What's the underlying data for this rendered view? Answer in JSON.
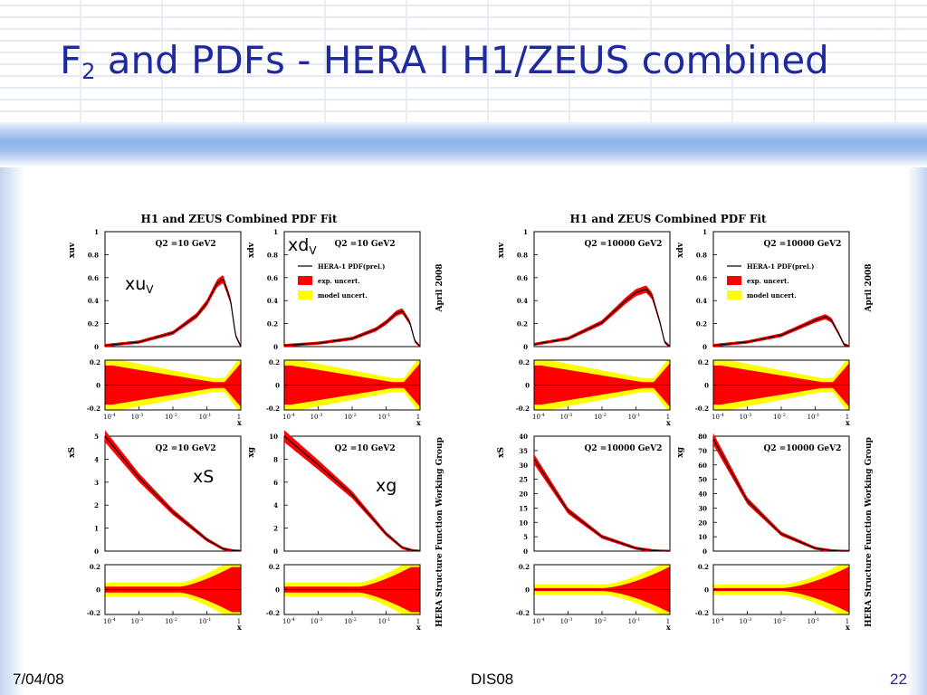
{
  "slide": {
    "title_main": "F",
    "title_sub": "2",
    "title_rest": " and PDFs - HERA I H1/ZEUS combined",
    "footer_date": "7/04/08",
    "footer_conference": "DIS08",
    "footer_page": "22"
  },
  "annotations": {
    "xdv_main": "xd",
    "xdv_sub": "V",
    "xuv_main": "xu",
    "xuv_sub": "V",
    "xS": "xS",
    "xg": "xg"
  },
  "colors": {
    "title": "#1f2a9e",
    "exp_uncert": "#ff0000",
    "model_uncert": "#ffff00",
    "central": "#000000"
  },
  "chart_data": [
    {
      "type": "line",
      "title": "H1 and ZEUS Combined PDF Fit",
      "side_text_top": "April 2008",
      "side_text_bottom": "HERA Structure Function Working Group",
      "legend": [
        "HERA-1 PDF(prel.)",
        "exp. uncert.",
        "model uncert."
      ],
      "legend_placement": "top-right",
      "x_scale": "log",
      "xlim": [
        0.0001,
        1
      ],
      "x_ticks": [
        "10-4",
        "10-3",
        "10-2",
        "10-1",
        "1"
      ],
      "panels": [
        {
          "id": "xuv",
          "ylabel": "xuv",
          "label": "Q2 =10 GeV2",
          "ylim": [
            0,
            1
          ],
          "y_ticks": [
            "0",
            "0.2",
            "0.4",
            "0.6",
            "0.8",
            "1"
          ],
          "x": [
            0.0001,
            0.001,
            0.01,
            0.05,
            0.1,
            0.2,
            0.3,
            0.5,
            0.7
          ],
          "y": [
            0.01,
            0.04,
            0.12,
            0.27,
            0.38,
            0.55,
            0.59,
            0.4,
            0.1
          ]
        },
        {
          "id": "xdv",
          "ylabel": "xdv",
          "label": "Q2 =10 GeV2",
          "ylim": [
            0,
            1
          ],
          "y_ticks": [
            "0",
            "0.2",
            "0.4",
            "0.6",
            "0.8",
            "1"
          ],
          "x": [
            0.0001,
            0.001,
            0.01,
            0.05,
            0.1,
            0.2,
            0.3,
            0.5,
            0.7
          ],
          "y": [
            0.01,
            0.03,
            0.07,
            0.15,
            0.21,
            0.29,
            0.31,
            0.21,
            0.05
          ]
        },
        {
          "id": "xS",
          "ylabel": "xS",
          "label": "Q2 =10 GeV2",
          "ylim": [
            0,
            5
          ],
          "y_ticks": [
            "0",
            "1",
            "2",
            "3",
            "4",
            "5"
          ],
          "x": [
            0.0001,
            0.001,
            0.01,
            0.1,
            0.3,
            0.6
          ],
          "y": [
            5.0,
            3.2,
            1.7,
            0.5,
            0.1,
            0.02
          ]
        },
        {
          "id": "xg",
          "ylabel": "xg",
          "label": "Q2 =10 GeV2",
          "ylim": [
            0,
            10
          ],
          "y_ticks": [
            "0",
            "2",
            "4",
            "6",
            "8",
            "10"
          ],
          "x": [
            0.0001,
            0.001,
            0.01,
            0.1,
            0.3,
            0.6
          ],
          "y": [
            10.0,
            7.5,
            4.9,
            1.5,
            0.3,
            0.05
          ]
        },
        {
          "id": "xuv",
          "ylabel": "xuv",
          "label": "Q2 =10000 GeV2",
          "ylim": [
            0,
            1
          ],
          "y_ticks": [
            "0",
            "0.2",
            "0.4",
            "0.6",
            "0.8",
            "1"
          ],
          "x": [
            0.0001,
            0.001,
            0.01,
            0.05,
            0.1,
            0.2,
            0.3,
            0.5,
            0.7
          ],
          "y": [
            0.02,
            0.07,
            0.21,
            0.4,
            0.47,
            0.5,
            0.44,
            0.22,
            0.04
          ]
        },
        {
          "id": "xdv",
          "ylabel": "xdv",
          "label": "Q2 =10000 GeV2",
          "ylim": [
            0,
            1
          ],
          "y_ticks": [
            "0",
            "0.2",
            "0.4",
            "0.6",
            "0.8",
            "1"
          ],
          "x": [
            0.0001,
            0.001,
            0.01,
            0.05,
            0.1,
            0.2,
            0.3,
            0.5,
            0.7
          ],
          "y": [
            0.01,
            0.04,
            0.1,
            0.19,
            0.23,
            0.26,
            0.23,
            0.11,
            0.02
          ]
        },
        {
          "id": "xS",
          "ylabel": "xS",
          "label": "Q2 =10000 GeV2",
          "ylim": [
            0,
            40
          ],
          "y_ticks": [
            "0",
            "5",
            "10",
            "15",
            "20",
            "25",
            "30",
            "35",
            "40"
          ],
          "x": [
            0.0001,
            0.001,
            0.01,
            0.1,
            0.3,
            0.6
          ],
          "y": [
            32,
            14,
            5,
            1,
            0.2,
            0.02
          ]
        },
        {
          "id": "xg",
          "ylabel": "xg",
          "label": "Q2 =10000 GeV2",
          "ylim": [
            0,
            80
          ],
          "y_ticks": [
            "0",
            "10",
            "20",
            "30",
            "40",
            "50",
            "60",
            "70",
            "80"
          ],
          "x": [
            0.0001,
            0.001,
            0.01,
            0.1,
            0.3,
            0.6
          ],
          "y": [
            78,
            35,
            12,
            2,
            0.3,
            0.02
          ]
        }
      ],
      "ratio_ylim": [
        -0.2,
        0.2
      ],
      "ratio_y_ticks": [
        "0.2",
        "0",
        "-0.2"
      ]
    }
  ]
}
